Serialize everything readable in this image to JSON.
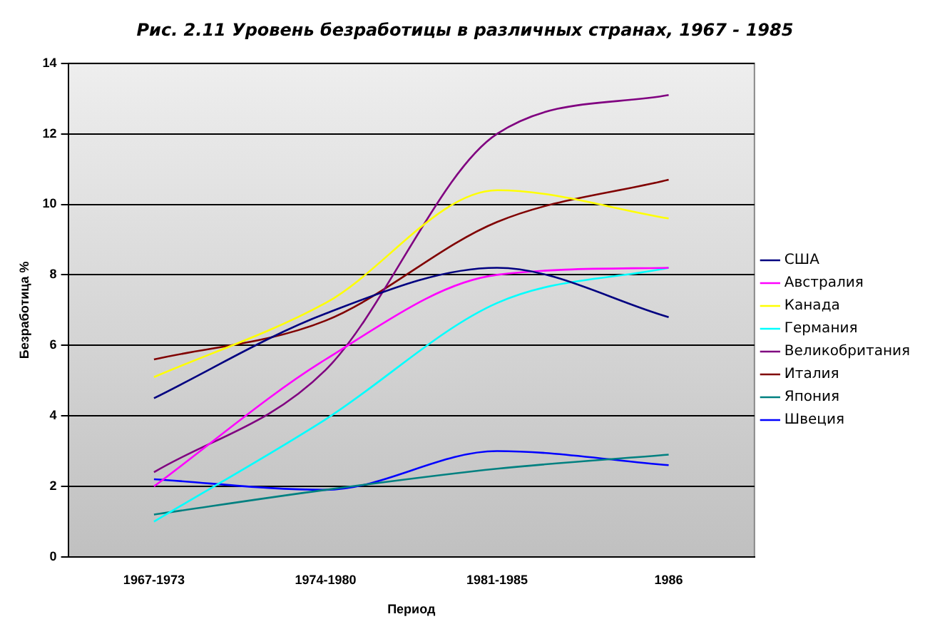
{
  "chart_data": {
    "type": "line",
    "title": "Рис. 2.11 Уровень безработицы в различных странах, 1967 - 1985",
    "xlabel": "Период",
    "ylabel": "Безработица %",
    "categories": [
      "1967-1973",
      "1974-1980",
      "1981-1985",
      "1986"
    ],
    "series": [
      {
        "name": "США",
        "color": "#000080",
        "values": [
          4.5,
          6.9,
          8.2,
          6.8
        ]
      },
      {
        "name": "Австралия",
        "color": "#ff00ff",
        "values": [
          2.0,
          5.6,
          8.0,
          8.2
        ]
      },
      {
        "name": "Канада",
        "color": "#ffff00",
        "values": [
          5.1,
          7.2,
          10.4,
          9.6
        ]
      },
      {
        "name": "Германия",
        "color": "#00ffff",
        "values": [
          1.0,
          3.9,
          7.2,
          8.2
        ]
      },
      {
        "name": "Великобритания",
        "color": "#800080",
        "values": [
          2.4,
          5.3,
          12.0,
          13.1
        ]
      },
      {
        "name": "Италия",
        "color": "#800000",
        "values": [
          5.6,
          6.7,
          9.5,
          10.7
        ]
      },
      {
        "name": "Япония",
        "color": "#008080",
        "values": [
          1.2,
          1.9,
          2.5,
          2.9
        ]
      },
      {
        "name": "Швеция",
        "color": "#0000ff",
        "values": [
          2.2,
          1.9,
          3.0,
          2.6
        ]
      }
    ],
    "ylim": [
      0,
      14
    ],
    "yticks": [
      0,
      2,
      4,
      6,
      8,
      10,
      12,
      14
    ],
    "grid": "y",
    "legend": "right",
    "marker": "none",
    "line_style": "solid"
  }
}
